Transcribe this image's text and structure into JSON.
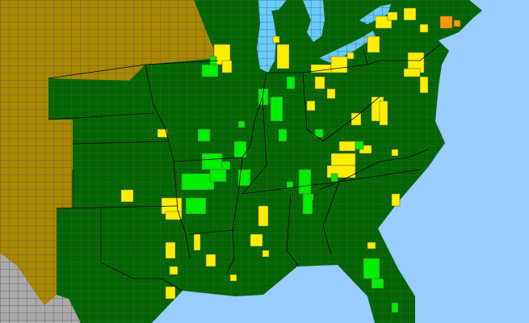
{
  "map": {
    "colors": {
      "ocean": "#99ccff",
      "lake": "#66ccff",
      "land_default": "#006600",
      "no_data_region": "#aa8800",
      "outside_region": "#aaaaaa",
      "category_light_green": "#00ee00",
      "category_yellow": "#ffee00",
      "category_orange": "#ff9900",
      "county_border": "#555555",
      "state_border": "#000000"
    }
  }
}
